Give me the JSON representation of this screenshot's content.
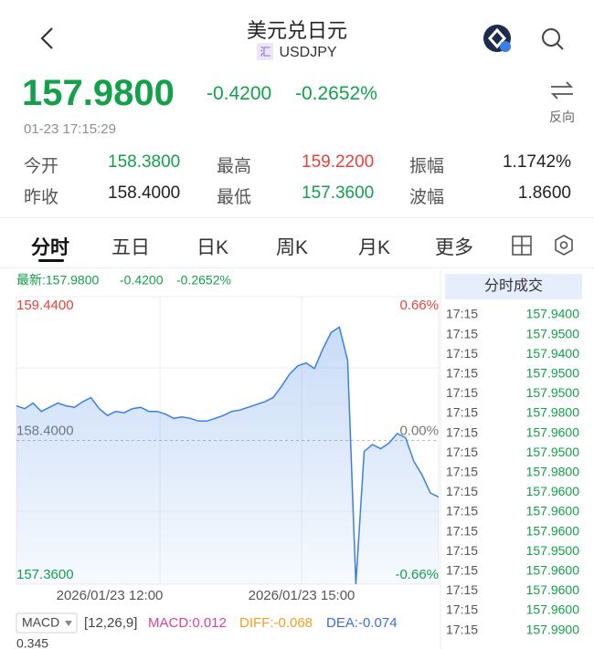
{
  "header": {
    "title": "美元兑日元",
    "badge": "汇",
    "symbol": "USDJPY"
  },
  "quote": {
    "price": "157.9800",
    "change": "-0.4200",
    "change_pct": "-0.2652%",
    "time": "01-23 17:15:29",
    "reverse": "反向"
  },
  "stats": [
    [
      {
        "label": "今开",
        "value": "158.3800"
      },
      {
        "label": "最高",
        "value": "159.2200"
      },
      {
        "label": "振幅",
        "value": "1.1742%"
      }
    ],
    [
      {
        "label": "昨收",
        "value": "158.4000"
      },
      {
        "label": "最低",
        "value": "157.3600"
      },
      {
        "label": "波幅",
        "value": "1.8600"
      }
    ]
  ],
  "tabs": [
    "分时",
    "五日",
    "日K",
    "周K",
    "月K",
    "更多"
  ],
  "chart_data": {
    "type": "line",
    "legend": [
      "最新:157.9800",
      "-0.4200",
      "-0.2652%"
    ],
    "color": "#3b7fe6",
    "values": [
      158.65,
      158.63,
      158.67,
      158.61,
      158.64,
      158.67,
      158.65,
      158.64,
      158.68,
      158.71,
      158.63,
      158.58,
      158.61,
      158.6,
      158.63,
      158.64,
      158.61,
      158.61,
      158.59,
      158.56,
      158.57,
      158.56,
      158.54,
      158.54,
      158.56,
      158.58,
      158.61,
      158.62,
      158.64,
      158.66,
      158.68,
      158.71,
      158.79,
      158.88,
      158.94,
      158.96,
      158.92,
      159.06,
      159.18,
      159.22,
      158.98,
      157.36,
      158.32,
      158.37,
      158.34,
      158.38,
      158.45,
      158.42,
      158.25,
      158.15,
      158.02,
      157.99
    ],
    "ylim": [
      157.36,
      159.44
    ],
    "yticks": [
      {
        "value": 159.44,
        "label": "159.4400"
      },
      {
        "value": 158.4,
        "label": "158.4000"
      },
      {
        "value": 157.36,
        "label": "157.3600"
      }
    ],
    "y2lim": [
      -0.66,
      0.66
    ],
    "y2ticks": [
      {
        "value": 0.66,
        "label": "0.66%"
      },
      {
        "value": 0,
        "label": "0.00%"
      },
      {
        "value": -0.66,
        "label": "-0.66%"
      }
    ],
    "x_labels": [
      "2026/01/23 12:00",
      "2026/01/23 15:00"
    ],
    "grid": true
  },
  "trades": {
    "title": "分时成交",
    "rows": [
      [
        "17:15",
        "157.9400"
      ],
      [
        "17:15",
        "157.9500"
      ],
      [
        "17:15",
        "157.9400"
      ],
      [
        "17:15",
        "157.9500"
      ],
      [
        "17:15",
        "157.9500"
      ],
      [
        "17:15",
        "157.9800"
      ],
      [
        "17:15",
        "157.9600"
      ],
      [
        "17:15",
        "157.9500"
      ],
      [
        "17:15",
        "157.9800"
      ],
      [
        "17:15",
        "157.9600"
      ],
      [
        "17:15",
        "157.9600"
      ],
      [
        "17:15",
        "157.9600"
      ],
      [
        "17:15",
        "157.9500"
      ],
      [
        "17:15",
        "157.9600"
      ],
      [
        "17:15",
        "157.9600"
      ],
      [
        "17:15",
        "157.9600"
      ],
      [
        "17:15",
        "157.9900"
      ]
    ]
  },
  "macd": {
    "indicator": "MACD",
    "params": "[12,26,9]",
    "macd": "MACD:0.012",
    "diff": "DIFF:-0.068",
    "dea": "DEA:-0.074",
    "scale": "0.345"
  }
}
